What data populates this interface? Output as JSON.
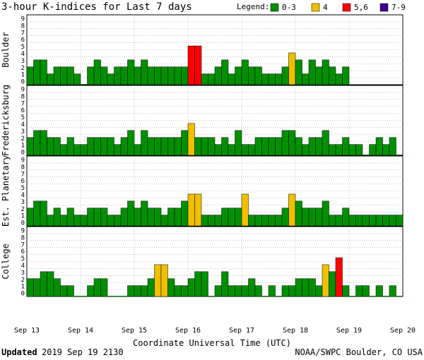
{
  "chart_data": {
    "type": "bar",
    "title": "3-hour K-indices for Last 7 days",
    "legend": {
      "label": "Legend:",
      "placement": "top-right",
      "items": [
        {
          "label": "0-3",
          "color": "#009000"
        },
        {
          "label": "4",
          "color": "#f0c000"
        },
        {
          "label": "5,6",
          "color": "#ff0000"
        },
        {
          "label": "7-9",
          "color": "#400090"
        }
      ]
    },
    "xlabel": "Coordinate Universal Time (UTC)",
    "x_ticks": [
      "Sep 13",
      "Sep 14",
      "Sep 15",
      "Sep 16",
      "Sep 17",
      "Sep 18",
      "Sep 19",
      "Sep 20"
    ],
    "y_ticks": [
      "0",
      "1",
      "2",
      "3",
      "4",
      "5",
      "6",
      "7",
      "8",
      "9"
    ],
    "ylim": [
      0,
      9
    ],
    "bins_per_day": 8,
    "days": 7,
    "panels": [
      {
        "ylabel": "Boulder",
        "values": [
          2,
          3,
          3,
          1,
          2,
          2,
          2,
          1,
          0,
          2,
          3,
          2,
          1,
          2,
          2,
          3,
          2,
          3,
          2,
          2,
          2,
          2,
          2,
          2,
          5,
          5,
          1,
          1,
          2,
          3,
          1,
          2,
          3,
          2,
          2,
          1,
          1,
          1,
          2,
          4,
          3,
          1,
          3,
          2,
          3,
          2,
          1,
          2
        ]
      },
      {
        "ylabel": "Fredericksburg",
        "values": [
          2,
          3,
          3,
          2,
          2,
          1,
          2,
          1,
          1,
          2,
          2,
          2,
          2,
          1,
          2,
          3,
          1,
          3,
          2,
          2,
          2,
          2,
          2,
          3,
          4,
          2,
          2,
          2,
          1,
          2,
          1,
          3,
          1,
          1,
          2,
          2,
          2,
          2,
          3,
          3,
          2,
          1,
          2,
          2,
          3,
          1,
          1,
          2,
          1,
          1,
          0,
          1,
          2,
          1,
          2,
          0
        ]
      },
      {
        "ylabel": "Est. Planetary",
        "values": [
          2,
          3,
          3,
          1,
          2,
          1,
          2,
          1,
          1,
          2,
          2,
          2,
          1,
          1,
          2,
          3,
          2,
          3,
          2,
          2,
          1,
          2,
          2,
          3,
          4,
          4,
          1,
          1,
          1,
          2,
          2,
          2,
          4,
          1,
          1,
          1,
          1,
          1,
          2,
          4,
          3,
          2,
          2,
          2,
          3,
          1,
          1,
          2,
          1,
          1,
          1,
          1,
          1,
          1,
          1,
          1
        ]
      },
      {
        "ylabel": "College",
        "values": [
          2,
          2,
          3,
          3,
          2,
          1,
          1,
          0,
          0,
          1,
          2,
          2,
          0,
          0,
          0,
          1,
          1,
          1,
          2,
          4,
          4,
          2,
          1,
          1,
          2,
          3,
          3,
          0,
          1,
          3,
          1,
          1,
          1,
          2,
          1,
          0,
          1,
          0,
          1,
          1,
          2,
          2,
          2,
          1,
          4,
          3,
          5,
          1,
          0,
          1,
          1,
          0,
          1,
          0,
          1,
          0
        ]
      }
    ]
  },
  "footer": {
    "updated_label": "Updated",
    "updated_value": "2019 Sep 19 2130",
    "credit": "NOAA/SWPC Boulder, CO USA"
  }
}
